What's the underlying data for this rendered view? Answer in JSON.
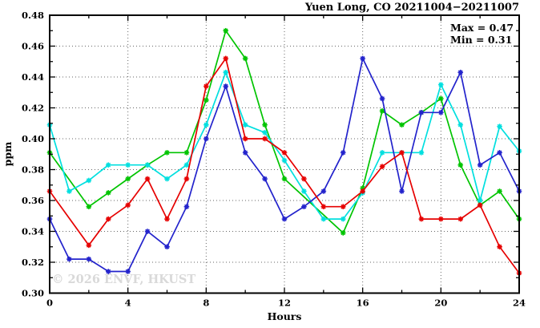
{
  "title": "Yuen Long, CO 20211004−20211007",
  "annotation": {
    "max_label": "Max = 0.47",
    "min_label": "Min = 0.31"
  },
  "watermark": "© 2026 ENVF, HKUST",
  "chart_data": {
    "type": "line",
    "title": "Yuen Long, CO 20211004−20211007",
    "xlabel": "Hours",
    "ylabel": "ppm",
    "xlim": [
      0,
      24
    ],
    "ylim": [
      0.3,
      0.48
    ],
    "grid": "dotted gridlines at major ticks, boxed axes with inward ticks",
    "legend_position": "none",
    "x_tick_labels": [
      "0",
      "4",
      "8",
      "12",
      "16",
      "20",
      "24"
    ],
    "x_major_step": 4,
    "x_minor_step": 2,
    "y_tick_labels": [
      "0.30",
      "0.32",
      "0.34",
      "0.36",
      "0.38",
      "0.40",
      "0.42",
      "0.44",
      "0.46",
      "0.48"
    ],
    "y_major_step": 0.02,
    "y_minor_step": 0.01,
    "x": [
      0,
      1,
      2,
      3,
      4,
      5,
      6,
      7,
      8,
      9,
      10,
      11,
      12,
      13,
      14,
      15,
      16,
      17,
      18,
      19,
      20,
      21,
      22,
      23,
      24
    ],
    "series": [
      {
        "name": "green",
        "color": "#00c400",
        "values": [
          0.391,
          null,
          0.356,
          0.365,
          0.374,
          0.383,
          0.391,
          0.391,
          0.425,
          0.47,
          0.452,
          0.409,
          0.374,
          null,
          null,
          0.339,
          0.368,
          0.418,
          0.409,
          0.417,
          0.426,
          0.383,
          0.357,
          0.366,
          0.348
        ]
      },
      {
        "name": "cyan",
        "color": "#00dfdf",
        "values": [
          0.409,
          0.366,
          0.373,
          0.383,
          0.383,
          0.383,
          0.374,
          0.383,
          0.409,
          0.443,
          0.409,
          0.404,
          0.386,
          0.366,
          0.348,
          0.348,
          0.365,
          0.391,
          0.391,
          0.391,
          0.435,
          0.409,
          0.36,
          0.408,
          0.392
        ]
      },
      {
        "name": "blue",
        "color": "#2323cc",
        "values": [
          0.348,
          0.322,
          0.322,
          0.314,
          0.314,
          0.34,
          0.33,
          0.356,
          0.4,
          0.434,
          0.391,
          0.374,
          0.348,
          0.356,
          0.366,
          0.391,
          0.452,
          0.426,
          0.366,
          0.417,
          0.417,
          0.443,
          0.383,
          0.391,
          0.366
        ]
      },
      {
        "name": "red",
        "color": "#e60000",
        "values": [
          0.366,
          null,
          0.331,
          0.348,
          0.357,
          0.374,
          0.348,
          0.374,
          0.434,
          0.452,
          0.4,
          0.4,
          0.391,
          0.374,
          0.356,
          0.356,
          0.366,
          0.382,
          0.391,
          0.348,
          0.348,
          0.348,
          0.357,
          0.33,
          0.313
        ]
      }
    ],
    "stats": {
      "max": 0.47,
      "min": 0.31
    }
  }
}
